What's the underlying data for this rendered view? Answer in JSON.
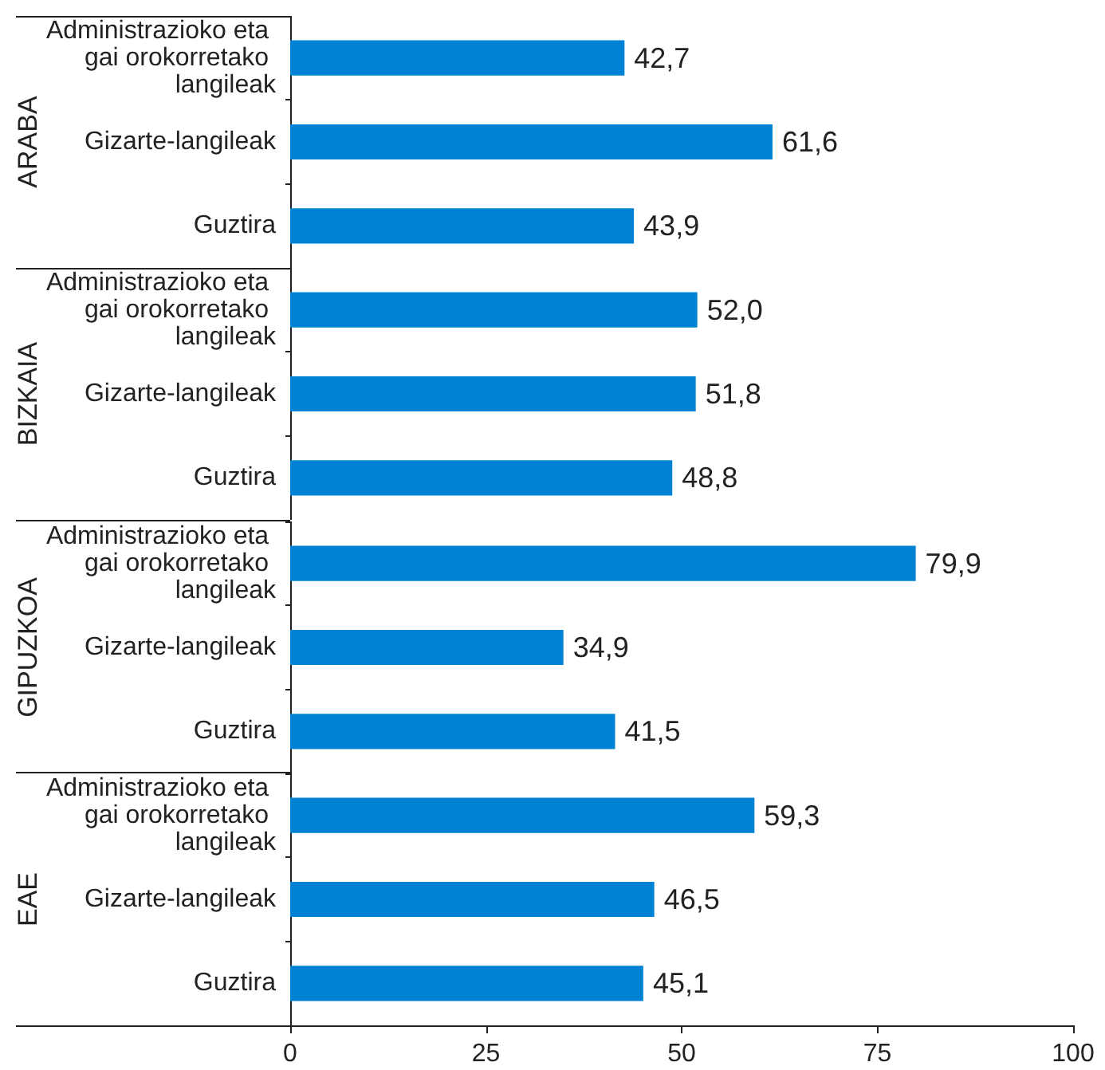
{
  "chart_data": [
    {
      "type": "bar",
      "orientation": "horizontal",
      "ylabel": "ARABA",
      "categories": [
        "Administrazioko eta gai orokorretako langileak",
        "Gizarte-langileak",
        "Guztira"
      ],
      "values": [
        42.7,
        61.6,
        43.9
      ],
      "value_labels": [
        "42,7",
        "61,6",
        "43,9"
      ],
      "color": "#0082d4",
      "xlim": [
        0,
        100
      ],
      "tick_labels": "y"
    },
    {
      "type": "bar",
      "orientation": "horizontal",
      "ylabel": "BIZKAIA",
      "categories": [
        "Administrazioko eta gai orokorretako langileak",
        "Gizarte-langileak",
        "Guztira"
      ],
      "values": [
        52.0,
        51.8,
        48.8
      ],
      "value_labels": [
        "52,0",
        "51,8",
        "48,8"
      ],
      "color": "#0082d4",
      "xlim": [
        0,
        100
      ],
      "tick_labels": "y"
    },
    {
      "type": "bar",
      "orientation": "horizontal",
      "ylabel": "GIPUZKOA",
      "categories": [
        "Administrazioko eta gai orokorretako langileak",
        "Gizarte-langileak",
        "Guztira"
      ],
      "values": [
        79.9,
        34.9,
        41.5
      ],
      "value_labels": [
        "79,9",
        "34,9",
        "41,5"
      ],
      "color": "#0082d4",
      "xlim": [
        0,
        100
      ],
      "tick_labels": "y"
    },
    {
      "type": "bar",
      "orientation": "horizontal",
      "ylabel": "EAE",
      "categories": [
        "Administrazioko eta gai orokorretako langileak",
        "Gizarte-langileak",
        "Guztira"
      ],
      "values": [
        59.3,
        46.5,
        45.1
      ],
      "value_labels": [
        "59,3",
        "46,5",
        "45,1"
      ],
      "color": "#0082d4",
      "xlim": [
        0,
        100
      ],
      "xticks": [
        0,
        25,
        50,
        75,
        100
      ]
    }
  ]
}
